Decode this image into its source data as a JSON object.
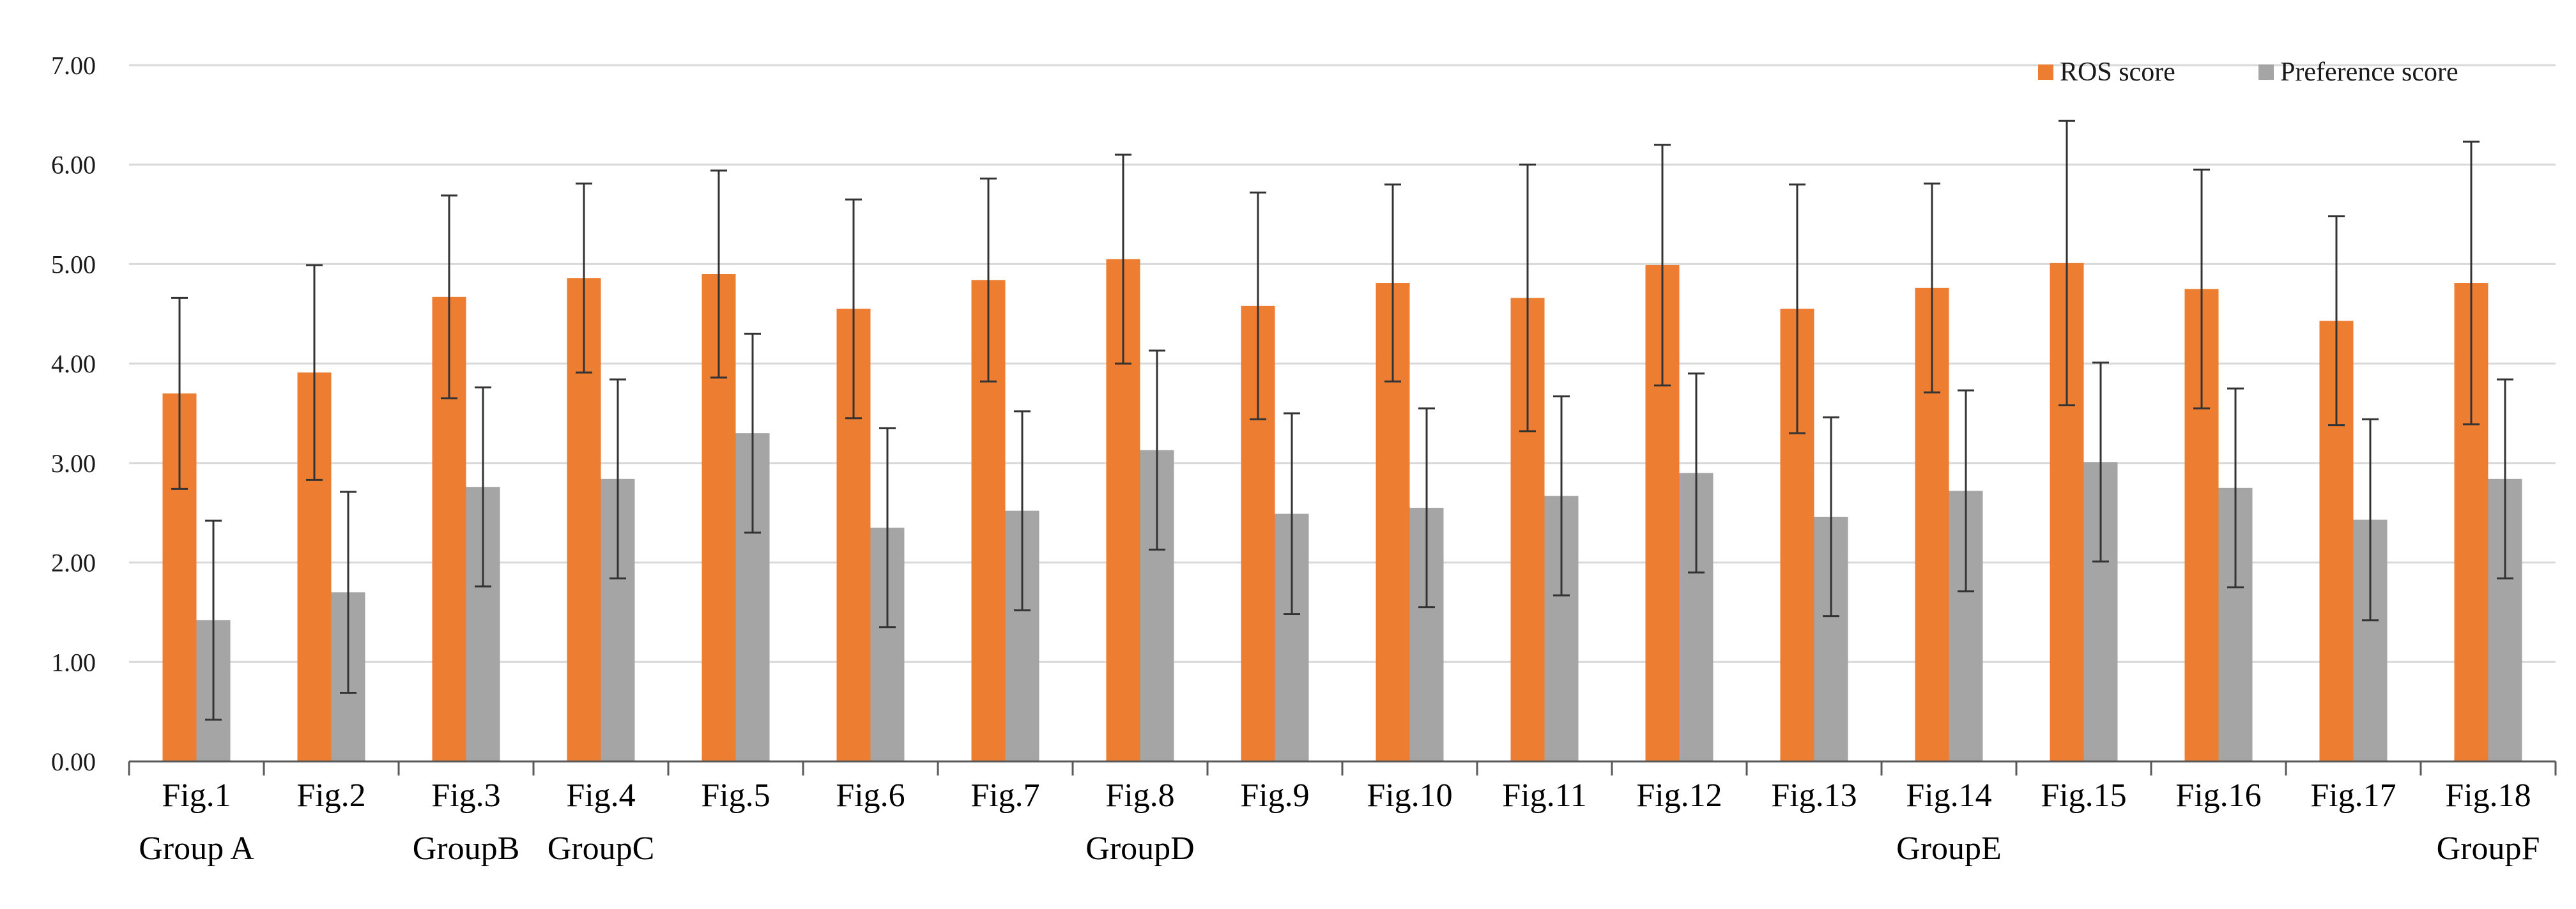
{
  "chart_data": {
    "type": "bar",
    "title": "",
    "xlabel": "",
    "ylabel": "",
    "ylim": [
      0,
      7
    ],
    "yticks": [
      "0.00",
      "1.00",
      "2.00",
      "3.00",
      "4.00",
      "5.00",
      "6.00",
      "7.00"
    ],
    "grid": true,
    "legend_position": "top-right",
    "categories": [
      "Fig.1",
      "Fig.2",
      "Fig.3",
      "Fig.4",
      "Fig.5",
      "Fig.6",
      "Fig.7",
      "Fig.8",
      "Fig.9",
      "Fig.10",
      "Fig.11",
      "Fig.12",
      "Fig.13",
      "Fig.14",
      "Fig.15",
      "Fig.16",
      "Fig.17",
      "Fig.18"
    ],
    "group_labels": [
      {
        "label": "Group A",
        "category": "Fig.1"
      },
      {
        "label": "GroupB",
        "category": "Fig.3"
      },
      {
        "label": "GroupC",
        "category": "Fig.4"
      },
      {
        "label": "GroupD",
        "category": "Fig.8"
      },
      {
        "label": "GroupE",
        "category": "Fig.14"
      },
      {
        "label": "GroupF",
        "category": "Fig.18"
      }
    ],
    "series": [
      {
        "name": "ROS score",
        "color": "#ED7D31",
        "values": [
          3.7,
          3.91,
          4.67,
          4.86,
          4.9,
          4.55,
          4.84,
          5.05,
          4.58,
          4.81,
          4.66,
          4.99,
          4.55,
          4.76,
          5.01,
          4.75,
          4.43,
          4.81
        ],
        "errors": [
          0.96,
          1.08,
          1.02,
          0.95,
          1.04,
          1.1,
          1.02,
          1.05,
          1.14,
          0.99,
          1.34,
          1.21,
          1.25,
          1.05,
          1.43,
          1.2,
          1.05,
          1.42
        ]
      },
      {
        "name": "Preference score",
        "color": "#A5A5A5",
        "values": [
          1.42,
          1.7,
          2.76,
          2.84,
          3.3,
          2.35,
          2.52,
          3.13,
          2.49,
          2.55,
          2.67,
          2.9,
          2.46,
          2.72,
          3.01,
          2.75,
          2.43,
          2.84
        ],
        "errors": [
          1.0,
          1.01,
          1.0,
          1.0,
          1.0,
          1.0,
          1.0,
          1.0,
          1.01,
          1.0,
          1.0,
          1.0,
          1.0,
          1.01,
          1.0,
          1.0,
          1.01,
          1.0
        ]
      }
    ]
  }
}
